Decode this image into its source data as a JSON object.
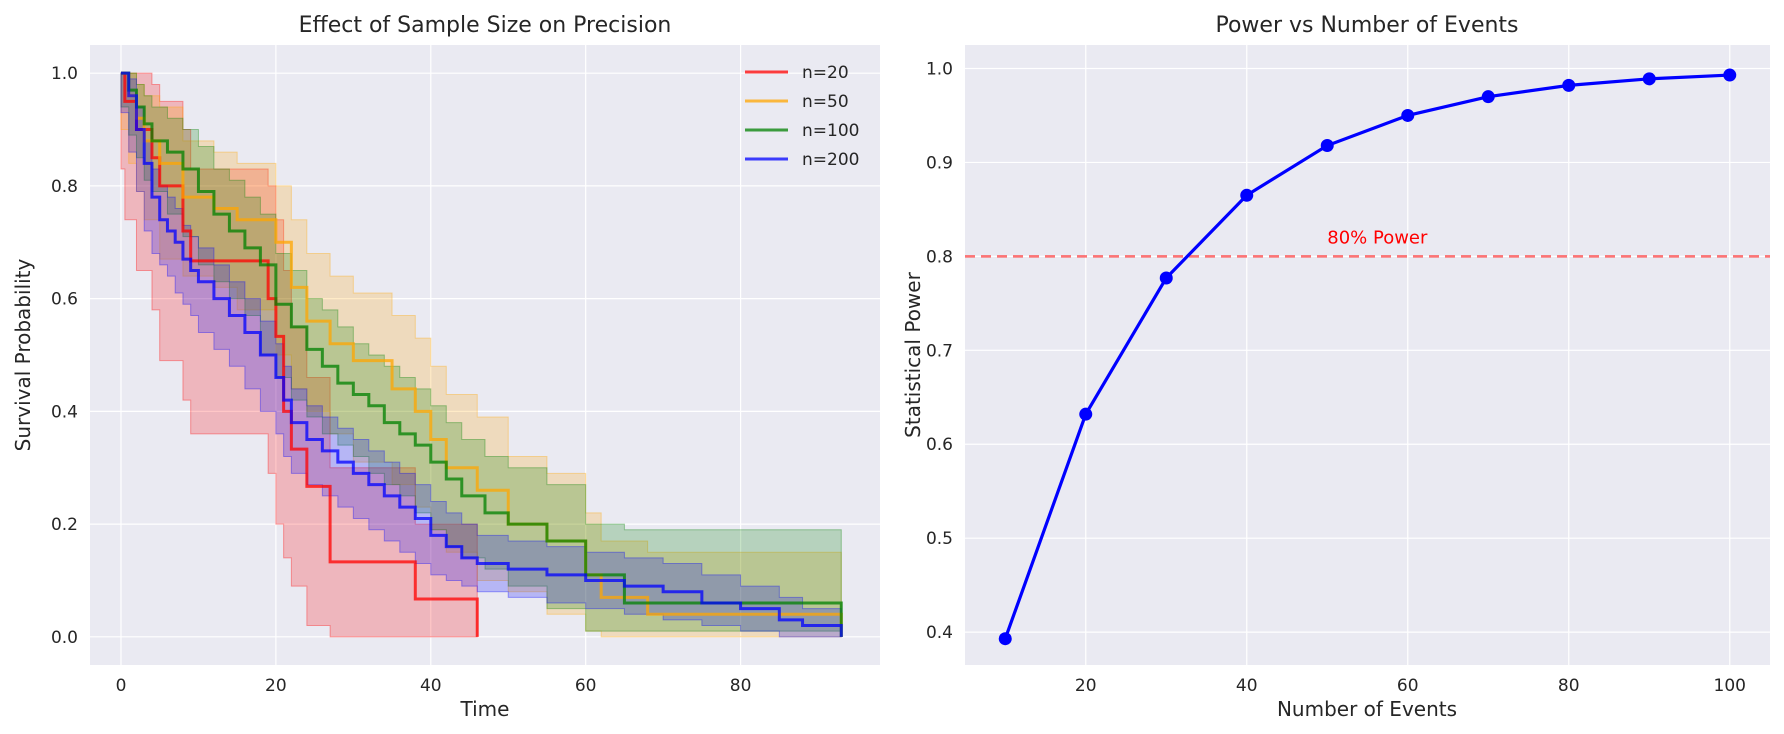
{
  "chart_data": [
    {
      "type": "line",
      "title": "Effect of Sample Size on Precision",
      "xlabel": "Time",
      "ylabel": "Survival Probability",
      "xlim": [
        -4,
        98
      ],
      "ylim": [
        -0.05,
        1.05
      ],
      "xticks": [
        0,
        20,
        40,
        60,
        80
      ],
      "yticks": [
        0.0,
        0.2,
        0.4,
        0.6,
        0.8,
        1.0
      ],
      "xtick_labels": [
        "0",
        "20",
        "40",
        "60",
        "80"
      ],
      "ytick_labels": [
        "0.0",
        "0.2",
        "0.4",
        "0.6",
        "0.8",
        "1.0"
      ],
      "grid": true,
      "legend_position": "top-right",
      "series": [
        {
          "name": "n=20",
          "color": "#ff0000",
          "x": [
            0,
            0.5,
            2,
            4,
            5,
            8,
            9,
            19,
            20,
            21,
            22,
            24,
            27,
            38,
            46
          ],
          "y": [
            1.0,
            0.95,
            0.9,
            0.85,
            0.8,
            0.72,
            0.667,
            0.6,
            0.533,
            0.4,
            0.333,
            0.267,
            0.133,
            0.067,
            0.0
          ],
          "lower": [
            1.0,
            0.83,
            0.74,
            0.65,
            0.58,
            0.49,
            0.42,
            0.36,
            0.29,
            0.2,
            0.14,
            0.09,
            0.02,
            0.0,
            0.0
          ],
          "upper": [
            1.0,
            1.0,
            1.0,
            0.98,
            0.95,
            0.9,
            0.83,
            0.8,
            0.74,
            0.65,
            0.55,
            0.46,
            0.3,
            0.2,
            0.12
          ]
        },
        {
          "name": "n=50",
          "color": "#ffa500",
          "x": [
            0,
            1,
            2,
            3,
            5,
            8,
            12,
            15,
            20,
            22,
            24,
            27,
            30,
            35,
            38,
            40,
            42,
            46,
            50,
            55,
            60,
            62,
            68,
            93
          ],
          "y": [
            1.0,
            0.96,
            0.92,
            0.88,
            0.84,
            0.78,
            0.76,
            0.74,
            0.7,
            0.62,
            0.56,
            0.52,
            0.49,
            0.44,
            0.4,
            0.35,
            0.3,
            0.26,
            0.2,
            0.17,
            0.11,
            0.07,
            0.04,
            0.0
          ],
          "lower": [
            1.0,
            0.9,
            0.84,
            0.79,
            0.74,
            0.67,
            0.64,
            0.62,
            0.58,
            0.5,
            0.44,
            0.4,
            0.36,
            0.31,
            0.27,
            0.23,
            0.19,
            0.15,
            0.1,
            0.08,
            0.04,
            0.01,
            0.0,
            0.0
          ],
          "upper": [
            1.0,
            1.0,
            0.98,
            0.96,
            0.94,
            0.88,
            0.86,
            0.84,
            0.8,
            0.74,
            0.68,
            0.64,
            0.61,
            0.57,
            0.53,
            0.48,
            0.43,
            0.39,
            0.32,
            0.29,
            0.22,
            0.17,
            0.15,
            0.15
          ]
        },
        {
          "name": "n=100",
          "color": "#008000",
          "x": [
            0,
            1,
            2,
            3,
            4,
            6,
            8,
            10,
            12,
            14,
            16,
            18,
            20,
            22,
            24,
            26,
            28,
            30,
            32,
            34,
            36,
            38,
            40,
            42,
            44,
            47,
            50,
            55,
            60,
            65,
            93
          ],
          "y": [
            1.0,
            0.97,
            0.94,
            0.91,
            0.88,
            0.86,
            0.83,
            0.79,
            0.75,
            0.72,
            0.69,
            0.66,
            0.59,
            0.55,
            0.51,
            0.48,
            0.45,
            0.43,
            0.41,
            0.38,
            0.36,
            0.34,
            0.31,
            0.28,
            0.25,
            0.22,
            0.2,
            0.17,
            0.11,
            0.06,
            0.0
          ],
          "lower": [
            1.0,
            0.94,
            0.89,
            0.85,
            0.81,
            0.79,
            0.75,
            0.71,
            0.66,
            0.63,
            0.6,
            0.57,
            0.5,
            0.46,
            0.42,
            0.39,
            0.36,
            0.34,
            0.32,
            0.29,
            0.27,
            0.25,
            0.22,
            0.19,
            0.16,
            0.14,
            0.12,
            0.09,
            0.05,
            0.01,
            0.01
          ],
          "upper": [
            1.0,
            1.0,
            0.98,
            0.96,
            0.94,
            0.92,
            0.9,
            0.87,
            0.83,
            0.81,
            0.78,
            0.75,
            0.68,
            0.65,
            0.6,
            0.58,
            0.55,
            0.52,
            0.5,
            0.48,
            0.46,
            0.44,
            0.41,
            0.38,
            0.35,
            0.32,
            0.3,
            0.27,
            0.2,
            0.19,
            0.19
          ]
        },
        {
          "name": "n=200",
          "color": "#0000ff",
          "x": [
            0,
            1,
            2,
            3,
            4,
            5,
            6,
            7,
            8,
            9,
            10,
            12,
            14,
            16,
            18,
            20,
            21,
            22,
            24,
            26,
            28,
            30,
            32,
            34,
            36,
            38,
            40,
            42,
            44,
            46,
            50,
            55,
            60,
            65,
            70,
            75,
            80,
            85,
            88,
            93
          ],
          "y": [
            1.0,
            0.96,
            0.9,
            0.84,
            0.78,
            0.74,
            0.72,
            0.7,
            0.67,
            0.65,
            0.63,
            0.6,
            0.57,
            0.54,
            0.5,
            0.46,
            0.42,
            0.38,
            0.35,
            0.33,
            0.31,
            0.29,
            0.27,
            0.25,
            0.23,
            0.21,
            0.18,
            0.16,
            0.14,
            0.13,
            0.12,
            0.11,
            0.1,
            0.09,
            0.08,
            0.06,
            0.05,
            0.03,
            0.02,
            0.0
          ],
          "lower": [
            1.0,
            0.93,
            0.86,
            0.79,
            0.72,
            0.68,
            0.66,
            0.64,
            0.61,
            0.59,
            0.57,
            0.54,
            0.51,
            0.48,
            0.44,
            0.4,
            0.36,
            0.32,
            0.29,
            0.27,
            0.25,
            0.23,
            0.21,
            0.19,
            0.17,
            0.15,
            0.13,
            0.11,
            0.1,
            0.09,
            0.08,
            0.07,
            0.06,
            0.05,
            0.04,
            0.03,
            0.02,
            0.01,
            0.0,
            0.0
          ],
          "upper": [
            1.0,
            0.99,
            0.94,
            0.88,
            0.83,
            0.8,
            0.78,
            0.76,
            0.73,
            0.71,
            0.69,
            0.66,
            0.63,
            0.6,
            0.56,
            0.52,
            0.48,
            0.44,
            0.41,
            0.39,
            0.37,
            0.35,
            0.33,
            0.31,
            0.29,
            0.27,
            0.24,
            0.22,
            0.2,
            0.18,
            0.17,
            0.16,
            0.15,
            0.14,
            0.13,
            0.11,
            0.09,
            0.07,
            0.05,
            0.05
          ]
        }
      ]
    },
    {
      "type": "line",
      "title": "Power vs Number of Events",
      "xlabel": "Number of Events",
      "ylabel": "Statistical Power",
      "xlim": [
        5,
        105
      ],
      "ylim": [
        0.365,
        1.025
      ],
      "xticks": [
        20,
        40,
        60,
        80,
        100
      ],
      "yticks": [
        0.4,
        0.5,
        0.6,
        0.7,
        0.8,
        0.9,
        1.0
      ],
      "xtick_labels": [
        "20",
        "40",
        "60",
        "80",
        "100"
      ],
      "ytick_labels": [
        "0.4",
        "0.5",
        "0.6",
        "0.7",
        "0.8",
        "0.9",
        "1.0"
      ],
      "grid": true,
      "series": [
        {
          "color": "#0000ff",
          "x": [
            10,
            20,
            30,
            40,
            50,
            60,
            70,
            80,
            90,
            100
          ],
          "y": [
            0.393,
            0.632,
            0.777,
            0.865,
            0.918,
            0.95,
            0.97,
            0.982,
            0.989,
            0.993
          ]
        }
      ],
      "reference_line": {
        "y": 0.8,
        "color": "#ff0000",
        "label": "80% Power",
        "label_x": 50,
        "label_y": 0.82
      }
    }
  ]
}
